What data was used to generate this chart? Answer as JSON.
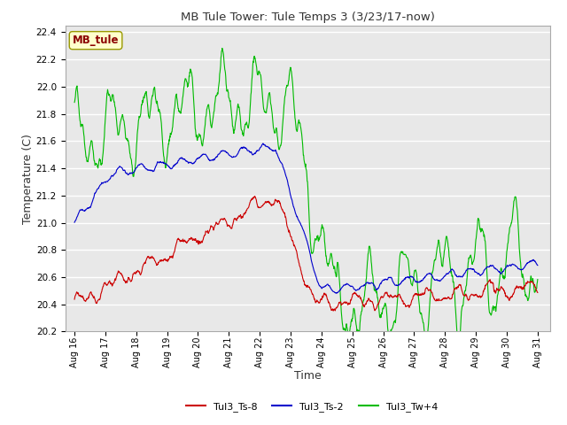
{
  "title": "MB Tule Tower: Tule Temps 3 (3/23/17-now)",
  "xlabel": "Time",
  "ylabel": "Temperature (C)",
  "ylim": [
    20.2,
    22.45
  ],
  "xtick_labels": [
    "Aug 16",
    "Aug 17",
    "Aug 18",
    "Aug 19",
    "Aug 20",
    "Aug 21",
    "Aug 22",
    "Aug 23",
    "Aug 24",
    "Aug 25",
    "Aug 26",
    "Aug 27",
    "Aug 28",
    "Aug 29",
    "Aug 30",
    "Aug 31"
  ],
  "legend_labels": [
    "Tul3_Ts-8",
    "Tul3_Ts-2",
    "Tul3_Tw+4"
  ],
  "line_colors": [
    "#cc0000",
    "#0000cc",
    "#00bb00"
  ],
  "bg_color": "#e8e8e8",
  "label_box_color": "#ffffcc",
  "label_box_text": "MB_tule",
  "label_box_text_color": "#8b0000",
  "grid_color": "white",
  "yticks": [
    20.2,
    20.4,
    20.6,
    20.8,
    21.0,
    21.2,
    21.4,
    21.6,
    21.8,
    22.0,
    22.2,
    22.4
  ]
}
